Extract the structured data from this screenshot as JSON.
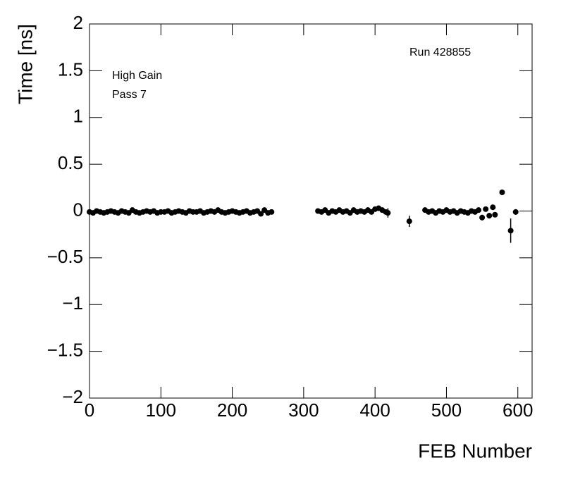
{
  "chart_data": {
    "type": "scatter",
    "xlabel": "FEB Number",
    "ylabel": "Time [ns]",
    "annotations": [
      "Run 428855",
      "High Gain",
      "Pass 7"
    ],
    "color": "#000000",
    "xlim": [
      0,
      620
    ],
    "ylim": [
      -2,
      2
    ],
    "xticks": [
      0,
      100,
      200,
      300,
      400,
      500,
      600
    ],
    "yticks": [
      {
        "value": -2,
        "label": "−2"
      },
      {
        "value": -1.5,
        "label": "−1.5"
      },
      {
        "value": -1,
        "label": "−1"
      },
      {
        "value": -0.5,
        "label": "−0.5"
      },
      0,
      0.5,
      1,
      1.5,
      2
    ],
    "series": [
      {
        "name": "Time",
        "x": [
          0,
          5,
          10,
          15,
          20,
          25,
          30,
          35,
          40,
          45,
          50,
          55,
          60,
          65,
          70,
          75,
          80,
          85,
          90,
          95,
          100,
          105,
          110,
          115,
          120,
          125,
          130,
          135,
          140,
          145,
          150,
          155,
          160,
          165,
          170,
          175,
          180,
          185,
          190,
          195,
          200,
          205,
          210,
          215,
          220,
          225,
          230,
          235,
          240,
          245,
          250,
          255,
          320,
          325,
          330,
          335,
          340,
          345,
          350,
          355,
          360,
          365,
          370,
          375,
          380,
          385,
          390,
          395,
          400,
          405,
          410,
          415,
          418,
          448,
          470,
          475,
          480,
          485,
          490,
          495,
          500,
          505,
          510,
          515,
          520,
          525,
          530,
          535,
          540,
          545,
          550,
          555,
          560,
          565,
          568,
          578,
          590,
          597
        ],
        "values": [
          -0.01,
          -0.02,
          0,
          -0.01,
          -0.02,
          -0.01,
          0,
          -0.01,
          -0.02,
          0,
          -0.01,
          -0.02,
          0.01,
          -0.01,
          -0.02,
          -0.01,
          0,
          -0.01,
          0,
          -0.02,
          -0.01,
          -0.01,
          0,
          -0.02,
          -0.01,
          0,
          -0.01,
          -0.02,
          0,
          -0.01,
          -0.01,
          0,
          -0.02,
          -0.01,
          0,
          -0.01,
          0.01,
          -0.01,
          -0.02,
          -0.01,
          0,
          -0.01,
          -0.02,
          -0.01,
          0,
          -0.02,
          -0.01,
          0,
          -0.03,
          0.01,
          -0.02,
          -0.01,
          0,
          -0.01,
          0.01,
          -0.02,
          0,
          -0.01,
          0.01,
          -0.01,
          0,
          -0.02,
          0.01,
          -0.01,
          0,
          -0.01,
          0.01,
          -0.01,
          0.02,
          0.03,
          0.01,
          -0.01,
          -0.02,
          -0.11,
          0.01,
          -0.01,
          0,
          -0.02,
          0,
          -0.01,
          0.01,
          -0.01,
          0,
          -0.02,
          0,
          -0.01,
          -0.02,
          0,
          -0.01,
          0.01,
          -0.07,
          0.02,
          -0.05,
          0.04,
          -0.04,
          0.2,
          -0.21,
          -0.01
        ],
        "errors": [
          0.01,
          0.01,
          0.01,
          0.01,
          0.01,
          0.01,
          0.01,
          0.01,
          0.01,
          0.01,
          0.01,
          0.01,
          0.01,
          0.01,
          0.01,
          0.01,
          0.01,
          0.01,
          0.01,
          0.01,
          0.01,
          0.01,
          0.01,
          0.01,
          0.01,
          0.01,
          0.01,
          0.01,
          0.01,
          0.01,
          0.01,
          0.01,
          0.01,
          0.01,
          0.01,
          0.01,
          0.01,
          0.01,
          0.01,
          0.01,
          0.01,
          0.01,
          0.01,
          0.01,
          0.01,
          0.01,
          0.01,
          0.01,
          0.02,
          0.01,
          0.01,
          0.01,
          0.01,
          0.01,
          0.01,
          0.01,
          0.01,
          0.01,
          0.01,
          0.01,
          0.01,
          0.01,
          0.01,
          0.01,
          0.01,
          0.01,
          0.01,
          0.01,
          0.01,
          0.02,
          0.01,
          0.01,
          0.05,
          0.06,
          0.01,
          0.01,
          0.01,
          0.01,
          0.01,
          0.01,
          0.01,
          0.01,
          0.01,
          0.01,
          0.01,
          0.01,
          0.01,
          0.01,
          0.01,
          0.01,
          0.03,
          0.02,
          0.03,
          0.03,
          0.02,
          0.03,
          0.13,
          0.03
        ]
      }
    ]
  }
}
